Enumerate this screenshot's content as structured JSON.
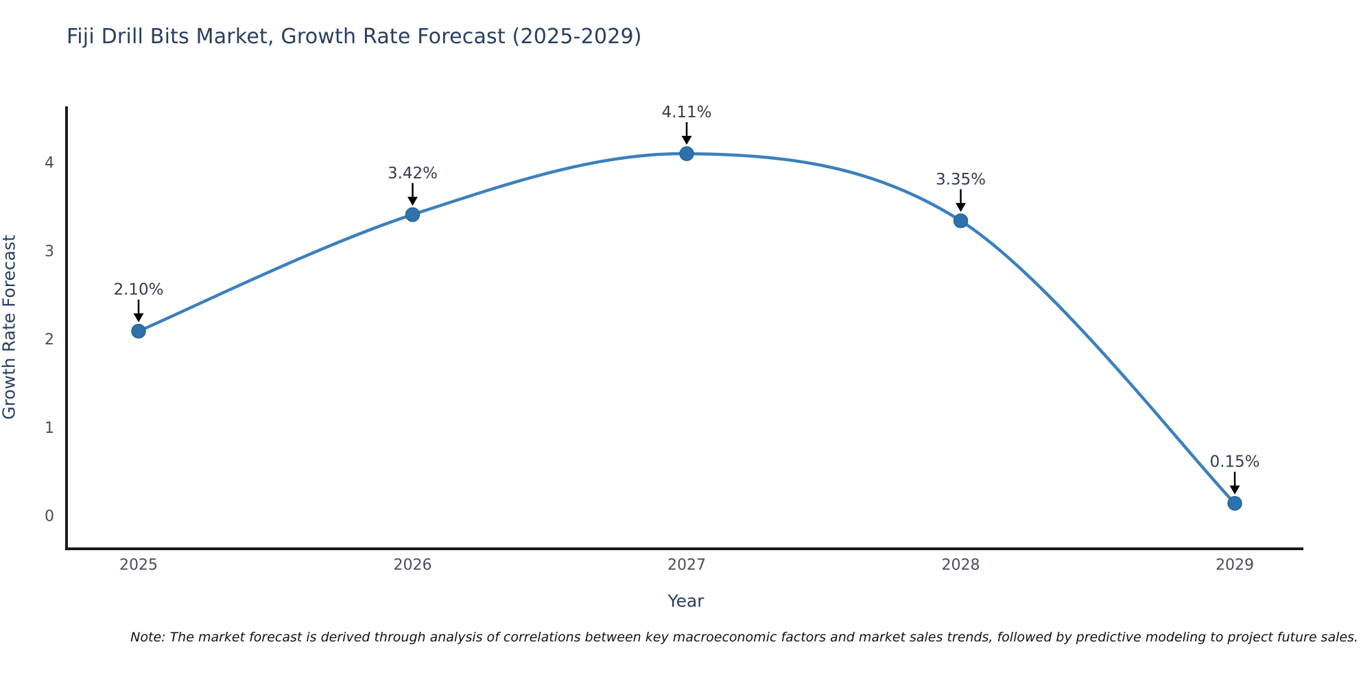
{
  "title": "Fiji Drill Bits Market, Growth Rate Forecast (2025-2029)",
  "note": "Note: The market forecast is derived through analysis of correlations between key macroeconomic factors and market sales trends, followed by predictive modeling to project future sales.",
  "chart_data": {
    "type": "line",
    "title": "Fiji Drill Bits Market, Growth Rate Forecast (2025-2029)",
    "xlabel": "Year",
    "ylabel": "Growth Rate Forecast",
    "x": [
      2025,
      2026,
      2027,
      2028,
      2029
    ],
    "series": [
      {
        "name": "Growth Rate Forecast",
        "values": [
          2.1,
          3.42,
          4.11,
          3.35,
          0.15
        ]
      }
    ],
    "point_labels": [
      "2.10%",
      "3.42%",
      "4.11%",
      "3.35%",
      "0.15%"
    ],
    "xticks": [
      "2025",
      "2026",
      "2027",
      "2028",
      "2029"
    ],
    "yticks": [
      0,
      1,
      2,
      3,
      4
    ],
    "ylim": [
      -0.37,
      4.65
    ],
    "grid": false,
    "legend": false,
    "line_smoothing": "spline",
    "colors": {
      "line": "#3c80bd",
      "marker": "#2e72ab",
      "marker_edge": "#29649a",
      "axis": "#1a1a1a",
      "tick_label": "#474f5a",
      "annotation_text": "#323c4e",
      "annotation_arrow": "#000000",
      "title": "#2a3f5f"
    }
  }
}
